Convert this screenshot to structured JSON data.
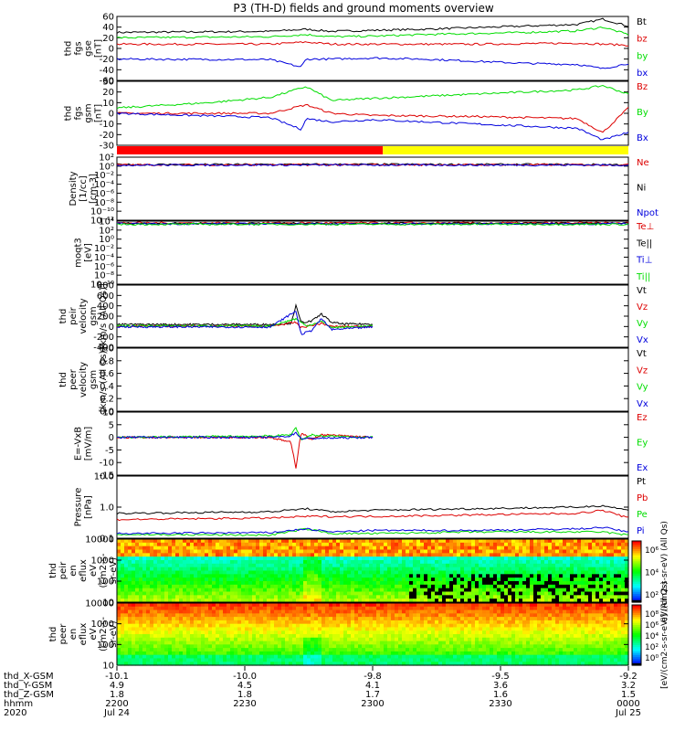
{
  "title": "P3 (TH-D) fields and ground moments overview",
  "colors": {
    "black": "#000000",
    "red": "#dd0000",
    "green": "#00dd00",
    "blue": "#0000dd",
    "yellow": "#ffff00",
    "mode_red": "#ff0000"
  },
  "chart_data": [
    {
      "type": "line",
      "ylabel_lines": [
        "thd",
        "fgs",
        "gse",
        "[nT]"
      ],
      "yticks": [
        "60",
        "40",
        "20",
        "0",
        "-20",
        "-40",
        "-60"
      ],
      "ylim": [
        -60,
        60
      ],
      "legend": [
        {
          "label": "Bt",
          "color": "#000000"
        },
        {
          "label": "bz",
          "color": "#dd0000"
        },
        {
          "label": "by",
          "color": "#00dd00"
        },
        {
          "label": "bx",
          "color": "#0000dd"
        }
      ],
      "series": [
        {
          "color": "#000000",
          "x": [
            0,
            0.3,
            0.37,
            0.42,
            0.5,
            0.6,
            0.7,
            0.8,
            0.9,
            0.95,
            1.0
          ],
          "y": [
            30,
            32,
            36,
            32,
            34,
            36,
            39,
            42,
            45,
            55,
            42
          ]
        },
        {
          "color": "#dd0000",
          "x": [
            0,
            0.3,
            0.37,
            0.42,
            0.5,
            0.7,
            0.9,
            1.0
          ],
          "y": [
            8,
            8,
            12,
            8,
            8,
            8,
            10,
            6
          ]
        },
        {
          "color": "#00dd00",
          "x": [
            0,
            0.3,
            0.37,
            0.42,
            0.5,
            0.6,
            0.7,
            0.8,
            0.9,
            0.95,
            1.0
          ],
          "y": [
            20,
            22,
            26,
            22,
            23,
            26,
            28,
            30,
            33,
            40,
            26
          ]
        },
        {
          "color": "#0000dd",
          "x": [
            0,
            0.3,
            0.36,
            0.37,
            0.42,
            0.5,
            0.6,
            0.7,
            0.8,
            0.9,
            0.95,
            1.0
          ],
          "y": [
            -20,
            -21,
            -35,
            -20,
            -20,
            -18,
            -20,
            -24,
            -28,
            -30,
            -38,
            -28
          ]
        }
      ]
    },
    {
      "type": "line",
      "ylabel_lines": [
        "thd",
        "fgs",
        "gsm",
        "[nT]"
      ],
      "yticks": [
        "30",
        "20",
        "10",
        "0",
        "-10",
        "-20",
        "-30"
      ],
      "ylim": [
        -30,
        30
      ],
      "legend": [
        {
          "label": "Bz",
          "color": "#dd0000"
        },
        {
          "label": "By",
          "color": "#00dd00"
        },
        {
          "label": "Bx",
          "color": "#0000dd"
        }
      ],
      "series": [
        {
          "color": "#dd0000",
          "x": [
            0,
            0.3,
            0.37,
            0.42,
            0.5,
            0.7,
            0.9,
            0.95,
            1.0
          ],
          "y": [
            0,
            0,
            8,
            0,
            -2,
            -3,
            -5,
            -18,
            5
          ]
        },
        {
          "color": "#00dd00",
          "x": [
            0,
            0.18,
            0.3,
            0.37,
            0.42,
            0.5,
            0.6,
            0.7,
            0.8,
            0.9,
            0.95,
            1.0
          ],
          "y": [
            5,
            10,
            15,
            25,
            12,
            14,
            16,
            18,
            20,
            22,
            26,
            18
          ]
        },
        {
          "color": "#0000dd",
          "x": [
            0,
            0.3,
            0.36,
            0.37,
            0.42,
            0.5,
            0.6,
            0.7,
            0.8,
            0.9,
            0.95,
            1.0
          ],
          "y": [
            0,
            -4,
            -15,
            -5,
            -8,
            -6,
            -8,
            -10,
            -12,
            -14,
            -25,
            -18
          ]
        }
      ]
    },
    {
      "type": "bar",
      "segments": [
        {
          "from": 0.0,
          "to": 0.52,
          "color": "#ff0000"
        },
        {
          "from": 0.52,
          "to": 1.0,
          "color": "#ffff00"
        }
      ]
    },
    {
      "type": "line",
      "ylabel_lines": [
        "Density",
        "[1/cc]",
        "[cm-3]"
      ],
      "yticks": [
        "10²",
        "10⁰",
        "10⁻²",
        "10⁻⁴",
        "10⁻⁶",
        "10⁻⁸",
        "10⁻¹⁰",
        "10⁻¹²"
      ],
      "ylim": [
        -12,
        2
      ],
      "legend": [
        {
          "label": "Ne",
          "color": "#dd0000"
        },
        {
          "label": "Ni",
          "color": "#000000"
        },
        {
          "label": "Npot",
          "color": "#0000dd"
        }
      ],
      "series": [
        {
          "color": "#000000",
          "x": [
            0,
            0.5,
            1.0
          ],
          "y": [
            0.35,
            0.4,
            0.35
          ]
        },
        {
          "color": "#dd0000",
          "x": [
            0,
            0.5,
            1.0
          ],
          "y": [
            0.3,
            0.3,
            0.3
          ]
        },
        {
          "color": "#0000dd",
          "x": [
            0,
            0.5,
            1.0
          ],
          "y": [
            0.25,
            0.25,
            0.25
          ]
        }
      ]
    },
    {
      "type": "line",
      "ylabel_lines": [
        "moqt3",
        "[eV]"
      ],
      "yticks": [
        "10⁴",
        "10²",
        "10⁰",
        "10⁻²",
        "10⁻⁴",
        "10⁻⁶",
        "10⁻⁸",
        "10⁻¹⁰"
      ],
      "ylim": [
        -10,
        4
      ],
      "legend": [
        {
          "label": "Te⊥",
          "color": "#dd0000"
        },
        {
          "label": "Te||",
          "color": "#000000"
        },
        {
          "label": "Ti⊥",
          "color": "#0000dd"
        },
        {
          "label": "Ti||",
          "color": "#00dd00"
        }
      ],
      "series": [
        {
          "color": "#dd0000",
          "x": [
            0,
            0.5,
            1.0
          ],
          "y": [
            3.6,
            3.6,
            3.6
          ]
        },
        {
          "color": "#000000",
          "x": [
            0,
            0.5,
            1.0
          ],
          "y": [
            3.5,
            3.5,
            3.5
          ]
        },
        {
          "color": "#0000dd",
          "x": [
            0,
            0.5,
            1.0
          ],
          "y": [
            3.4,
            3.4,
            3.4
          ]
        },
        {
          "color": "#00dd00",
          "x": [
            0,
            0.5,
            1.0
          ],
          "y": [
            3.3,
            3.3,
            3.3
          ]
        }
      ]
    },
    {
      "type": "line",
      "ylabel_lines": [
        "thd",
        "peir",
        "velocity",
        "gsm",
        "[km/s (All Qs)]"
      ],
      "yticks": [
        "800",
        "600",
        "400",
        "200",
        "0",
        "-200",
        "-400"
      ],
      "ylim": [
        -400,
        800
      ],
      "legend": [
        {
          "label": "Vt",
          "color": "#000000"
        },
        {
          "label": "Vz",
          "color": "#dd0000"
        },
        {
          "label": "Vy",
          "color": "#00dd00"
        },
        {
          "label": "Vx",
          "color": "#0000dd"
        }
      ],
      "series": [
        {
          "color": "#000000",
          "x": [
            0,
            0.3,
            0.34,
            0.35,
            0.36,
            0.38,
            0.4,
            0.42,
            0.44,
            0.5
          ],
          "y": [
            40,
            40,
            60,
            400,
            80,
            100,
            240,
            80,
            50,
            45
          ]
        },
        {
          "color": "#dd0000",
          "x": [
            0,
            0.3,
            0.35,
            0.36,
            0.4,
            0.42,
            0.5
          ],
          "y": [
            10,
            5,
            80,
            -20,
            60,
            0,
            5
          ]
        },
        {
          "color": "#00dd00",
          "x": [
            0,
            0.3,
            0.35,
            0.37,
            0.4,
            0.42,
            0.5
          ],
          "y": [
            15,
            10,
            150,
            10,
            100,
            -20,
            10
          ]
        },
        {
          "color": "#0000dd",
          "x": [
            0,
            0.3,
            0.35,
            0.36,
            0.38,
            0.4,
            0.42,
            0.5
          ],
          "y": [
            -5,
            -10,
            300,
            -150,
            -80,
            150,
            -60,
            -10
          ]
        }
      ]
    },
    {
      "type": "line",
      "ylabel_lines": [
        "thd",
        "peer",
        "velocity",
        "gsm",
        "[km/s (All Qs)]"
      ],
      "yticks": [
        "1.0",
        "0.8",
        "0.6",
        "0.4",
        "0.2",
        "0.0"
      ],
      "ylim": [
        0,
        1
      ],
      "legend": [
        {
          "label": "Vt",
          "color": "#000000"
        },
        {
          "label": "Vz",
          "color": "#dd0000"
        },
        {
          "label": "Vy",
          "color": "#00dd00"
        },
        {
          "label": "Vx",
          "color": "#0000dd"
        }
      ],
      "series": []
    },
    {
      "type": "line",
      "ylabel_lines": [
        "E=-VxB",
        "[mV/m]"
      ],
      "yticks": [
        "10",
        "5",
        "0",
        "-5",
        "-10",
        "-15"
      ],
      "ylim": [
        -15,
        10
      ],
      "legend": [
        {
          "label": "Ez",
          "color": "#dd0000"
        },
        {
          "label": "Ey",
          "color": "#00dd00"
        },
        {
          "label": "Ex",
          "color": "#0000dd"
        }
      ],
      "series": [
        {
          "color": "#dd0000",
          "x": [
            0,
            0.3,
            0.34,
            0.35,
            0.36,
            0.38,
            0.4,
            0.5
          ],
          "y": [
            0,
            0,
            -2,
            -12,
            2,
            -1,
            1,
            0
          ]
        },
        {
          "color": "#00dd00",
          "x": [
            0,
            0.3,
            0.34,
            0.35,
            0.36,
            0.38,
            0.4,
            0.5
          ],
          "y": [
            0,
            0.5,
            1,
            4,
            -1,
            1,
            0.5,
            0
          ]
        },
        {
          "color": "#0000dd",
          "x": [
            0,
            0.3,
            0.34,
            0.35,
            0.36,
            0.5
          ],
          "y": [
            0,
            0,
            0.5,
            2,
            -0.5,
            0
          ]
        }
      ]
    },
    {
      "type": "line",
      "ylabel_lines": [
        "Pressure",
        "[nPa]"
      ],
      "yticks": [
        "10.0",
        "1.0",
        "0.1"
      ],
      "ylim": [
        -1,
        1
      ],
      "legend": [
        {
          "label": "Pt",
          "color": "#000000"
        },
        {
          "label": "Pb",
          "color": "#dd0000"
        },
        {
          "label": "Pe",
          "color": "#00dd00"
        },
        {
          "label": "Pi",
          "color": "#0000dd"
        }
      ],
      "series": [
        {
          "color": "#000000",
          "x": [
            0,
            0.3,
            0.37,
            0.42,
            0.5,
            0.7,
            0.9,
            0.95,
            1.0
          ],
          "y": [
            -0.2,
            -0.15,
            -0.05,
            -0.15,
            -0.1,
            -0.05,
            0.0,
            0.05,
            -0.1
          ]
        },
        {
          "color": "#dd0000",
          "x": [
            0,
            0.3,
            0.37,
            0.42,
            0.5,
            0.7,
            0.9,
            0.95,
            1.0
          ],
          "y": [
            -0.4,
            -0.35,
            -0.3,
            -0.3,
            -0.3,
            -0.25,
            -0.2,
            -0.1,
            -0.35
          ]
        },
        {
          "color": "#00dd00",
          "x": [
            0,
            0.3,
            0.37,
            0.42,
            0.5,
            0.7,
            0.9,
            0.95,
            1.0
          ],
          "y": [
            -0.88,
            -0.9,
            -0.7,
            -0.85,
            -0.85,
            -0.8,
            -0.8,
            -0.8,
            -0.9
          ]
        },
        {
          "color": "#0000dd",
          "x": [
            0,
            0.3,
            0.37,
            0.42,
            0.5,
            0.7,
            0.9,
            0.95,
            1.0
          ],
          "y": [
            -0.85,
            -0.82,
            -0.7,
            -0.8,
            -0.75,
            -0.75,
            -0.7,
            -0.65,
            -0.8
          ]
        }
      ]
    },
    {
      "type": "heatmap",
      "ylabel_lines": [
        "thd",
        "peir",
        "en",
        "eflux",
        "eV",
        "(cm2-s-",
        "sr-eV)"
      ],
      "yticks": [
        "10000",
        "1000",
        "100",
        "10"
      ]
    },
    {
      "type": "heatmap",
      "ylabel_lines": [
        "thd",
        "peer",
        "en",
        "eflux",
        "eV",
        "(cm2-s-",
        "sr-eV)"
      ],
      "yticks": [
        "10000",
        "1000",
        "100",
        "10"
      ]
    }
  ],
  "colorbars": [
    {
      "ticks": [
        "10⁶",
        "10⁴",
        "10²"
      ],
      "label": "eV/(cm2-s-sr-eV) (All Qs)"
    },
    {
      "ticks": [
        "10⁸",
        "10⁶",
        "10⁴",
        "10²",
        "10⁰"
      ],
      "label": "[eV/(cm2-s-sr-eV)] (All Qs)"
    }
  ],
  "xaxis": {
    "row_labels": [
      "thd_X-GSM",
      "thd_Y-GSM",
      "thd_Z-GSM",
      "hhmm",
      "2020"
    ],
    "columns": [
      {
        "vals": [
          "-10.1",
          "4.9",
          "1.8",
          "2200",
          "Jul 24"
        ]
      },
      {
        "vals": [
          "-10.0",
          "4.5",
          "1.8",
          "2230",
          ""
        ]
      },
      {
        "vals": [
          "-9.8",
          "4.1",
          "1.7",
          "2300",
          ""
        ]
      },
      {
        "vals": [
          "-9.5",
          "3.6",
          "1.6",
          "2330",
          ""
        ]
      },
      {
        "vals": [
          "-9.2",
          "3.2",
          "1.5",
          "0000",
          "Jul 25"
        ]
      }
    ]
  }
}
